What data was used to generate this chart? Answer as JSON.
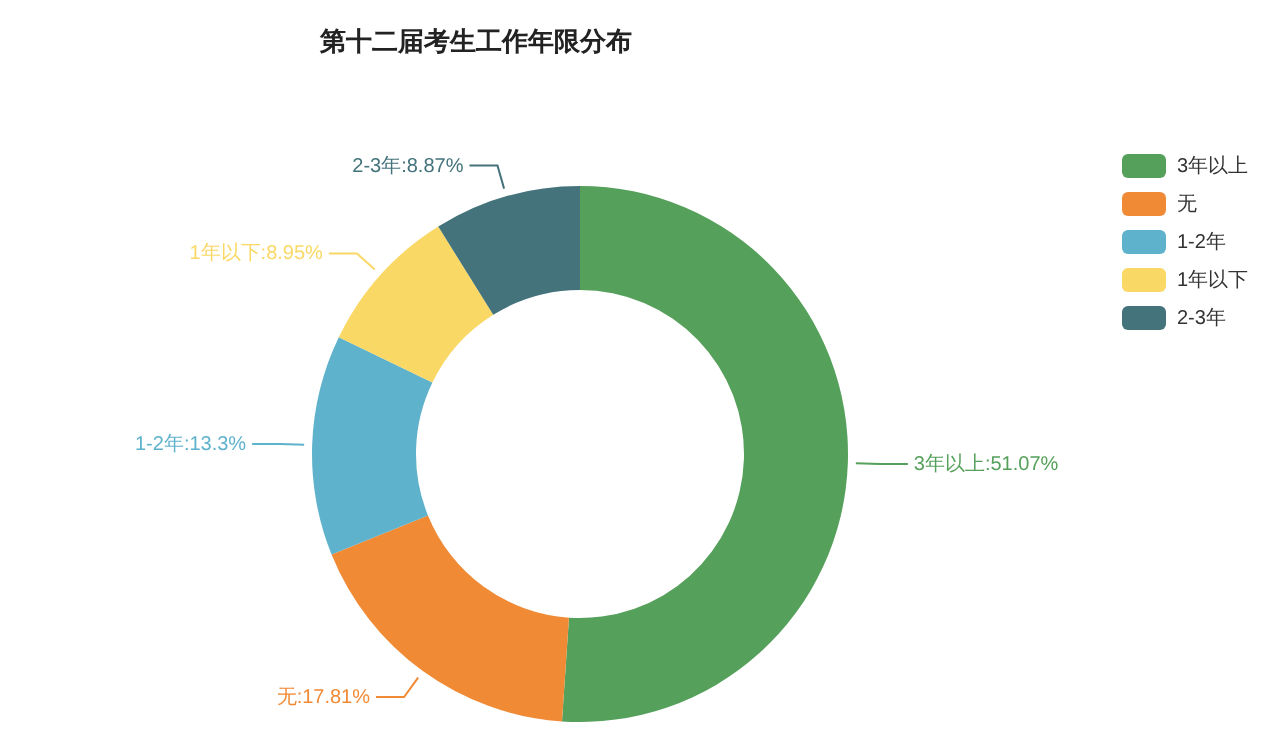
{
  "chart_data": {
    "type": "donut",
    "title": "第十二届考生工作年限分布",
    "categories": [
      "3年以上",
      "无",
      "1-2年",
      "1年以下",
      "2-3年"
    ],
    "values": [
      51.07,
      17.81,
      13.3,
      8.95,
      8.87
    ],
    "value_labels": [
      "3年以上:51.07%",
      "无:17.81%",
      "1-2年:13.3%",
      "1年以下:8.95%",
      "2-3年:8.87%"
    ],
    "colors": [
      "#55a05a",
      "#f08a35",
      "#5fb2cb",
      "#fad865",
      "#44737c"
    ],
    "legend": "top right"
  }
}
